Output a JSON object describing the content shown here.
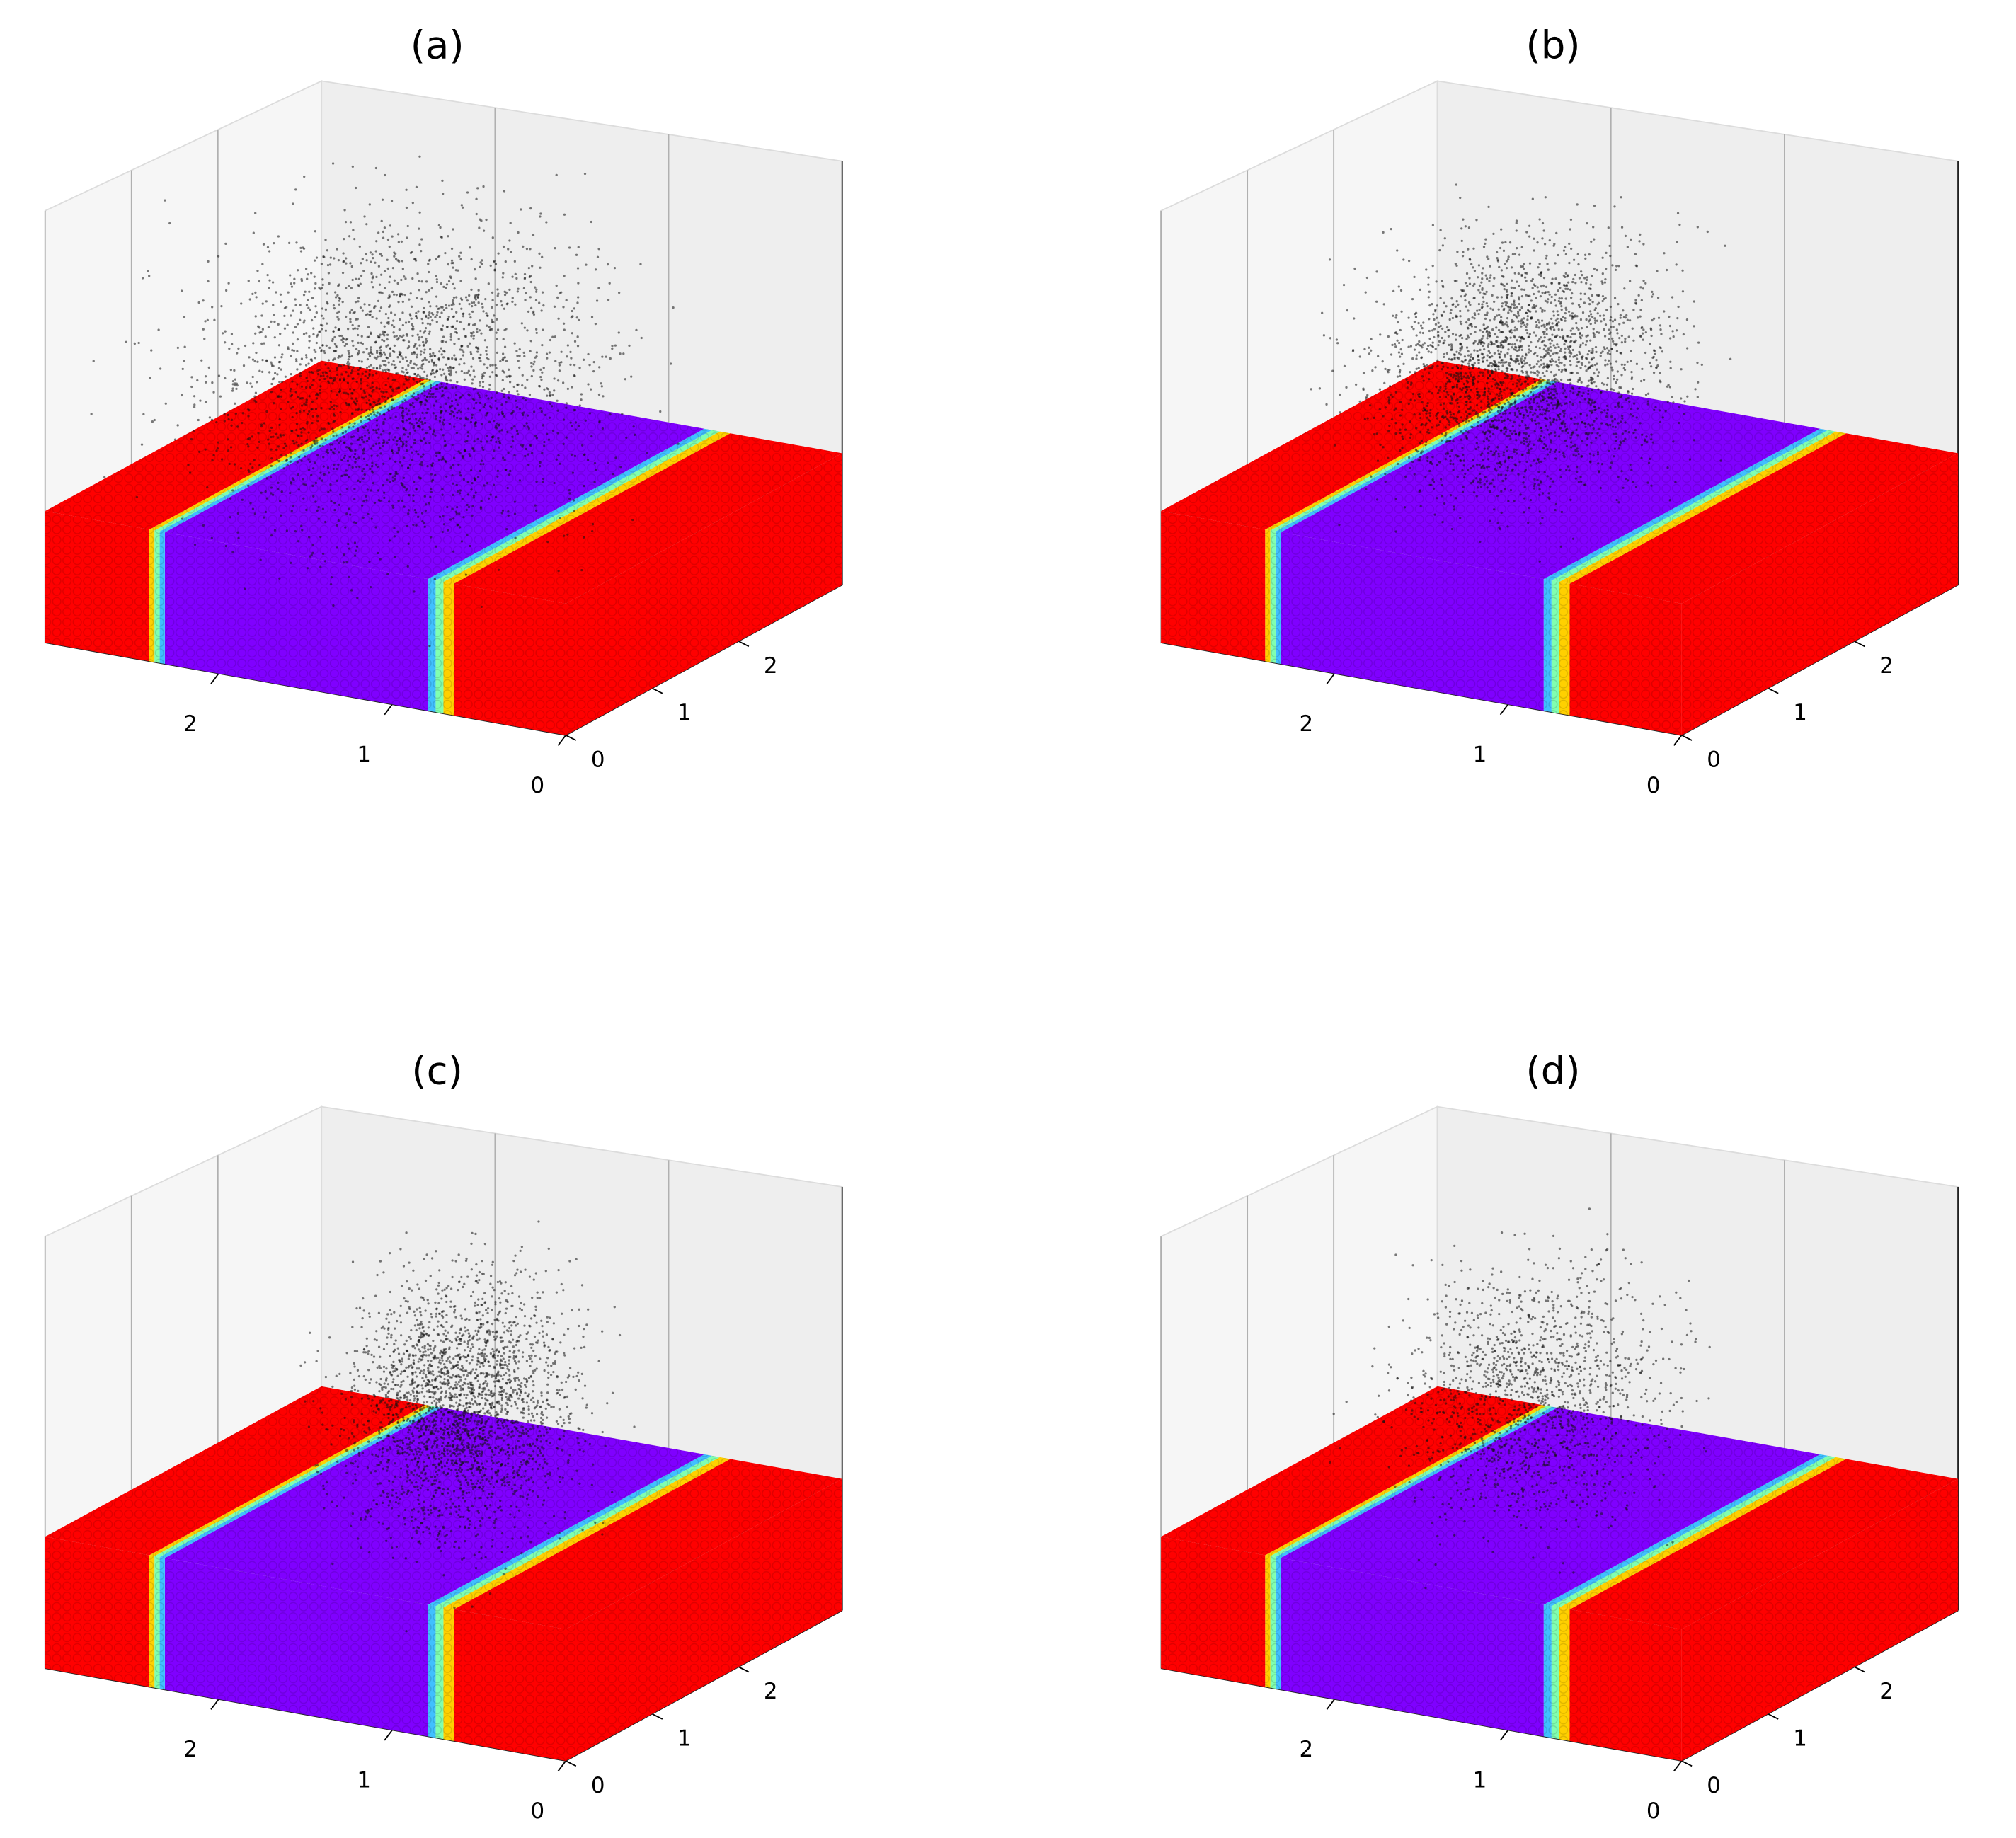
{
  "chart_data": [
    {
      "type": "scatter3d",
      "title": "(a)",
      "xlim": [
        0,
        3
      ],
      "xticks": [
        0,
        1,
        2
      ],
      "ylim": [
        3.2,
        0
      ],
      "yticks": [
        0,
        1,
        2
      ]
    },
    {
      "type": "scatter3d",
      "title": "(b)",
      "xlim": [
        0,
        3
      ],
      "xticks": [
        0,
        1,
        2
      ],
      "ylim": [
        3.2,
        0
      ],
      "yticks": [
        0,
        1,
        2
      ]
    },
    {
      "type": "scatter3d",
      "title": "(c)",
      "xlim": [
        0,
        3
      ],
      "xticks": [
        0,
        1,
        2
      ],
      "ylim": [
        3.2,
        0
      ],
      "yticks": [
        0,
        1,
        2
      ]
    },
    {
      "type": "scatter3d",
      "title": "(d)",
      "xlim": [
        0,
        3
      ],
      "xticks": [
        0,
        1,
        2
      ],
      "ylim": [
        3.2,
        0
      ],
      "yticks": [
        0,
        1,
        2
      ]
    }
  ]
}
